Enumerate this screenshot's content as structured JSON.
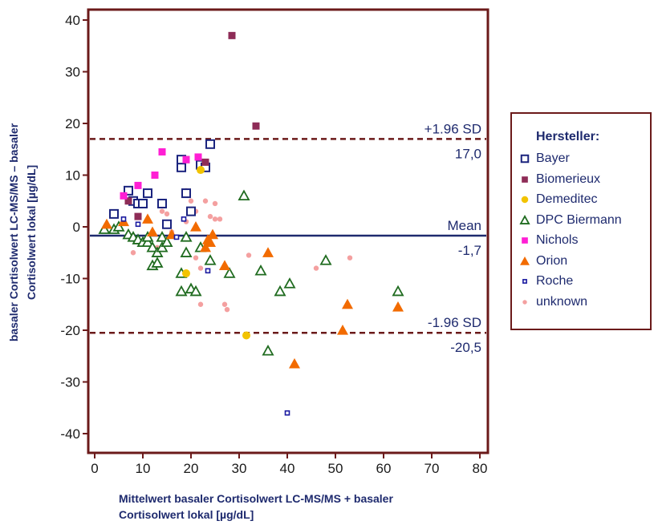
{
  "chart_data": {
    "type": "scatter",
    "xlim": [
      0,
      80
    ],
    "ylim": [
      -42,
      42
    ],
    "x_ticks": [
      "0",
      "10",
      "20",
      "30",
      "40",
      "50",
      "60",
      "70",
      "80"
    ],
    "y_ticks": [
      "40",
      "30",
      "20",
      "10",
      "0",
      "-10",
      "-20",
      "-30",
      "-40"
    ],
    "xlabel": [
      "Mittelwert basaler Cortisolwert LC-MS/MS + basaler",
      "Cortisolwert lokal [µg/dL]"
    ],
    "ylabel": [
      "basaler Cortisolwert LC-MS/MS – basaler",
      "Cortisolwert lokal [µg/dL]"
    ],
    "reference_lines": {
      "upper": {
        "label": "+1.96 SD",
        "value_text": "17,0",
        "y": 17.0
      },
      "mean": {
        "label": "Mean",
        "value_text": "-1,7",
        "y": -1.7
      },
      "lower": {
        "label": "-1.96 SD",
        "value_text": "-20,5",
        "y": -20.5
      }
    },
    "legend": {
      "title": "Hersteller:",
      "placement": "right"
    },
    "series": [
      {
        "name": "Bayer",
        "symbol": "square-open",
        "color": "#1a237e",
        "points": [
          [
            4,
            2.5
          ],
          [
            7,
            7
          ],
          [
            8,
            5
          ],
          [
            9,
            4.5
          ],
          [
            10,
            4.5
          ],
          [
            11,
            6.5
          ],
          [
            14,
            4.5
          ],
          [
            15,
            0.5
          ],
          [
            18,
            11.5
          ],
          [
            18,
            13
          ],
          [
            19,
            6.5
          ],
          [
            20,
            3
          ],
          [
            22,
            12
          ],
          [
            23,
            11.5
          ],
          [
            24,
            16
          ]
        ]
      },
      {
        "name": "Biomerieux",
        "symbol": "square",
        "color": "#8e2c57",
        "points": [
          [
            7,
            5
          ],
          [
            9,
            2
          ],
          [
            19,
            13
          ],
          [
            23,
            12.5
          ],
          [
            28.5,
            37
          ],
          [
            33.5,
            19.5
          ]
        ]
      },
      {
        "name": "Demeditec",
        "symbol": "circle",
        "color": "#f2c300",
        "points": [
          [
            19,
            -9
          ],
          [
            22,
            11
          ],
          [
            31.5,
            -21
          ]
        ]
      },
      {
        "name": "DPC Biermann",
        "symbol": "triangle-open",
        "color": "#1f6b1f",
        "points": [
          [
            2,
            -0.5
          ],
          [
            4,
            -0.5
          ],
          [
            5,
            0
          ],
          [
            7,
            -1.5
          ],
          [
            8,
            -2
          ],
          [
            9,
            -2.5
          ],
          [
            10,
            -3
          ],
          [
            11,
            -3
          ],
          [
            11,
            -2
          ],
          [
            12,
            -4
          ],
          [
            12,
            -7.5
          ],
          [
            13,
            -5
          ],
          [
            13,
            -7
          ],
          [
            14,
            -4
          ],
          [
            14,
            -2
          ],
          [
            15,
            -3
          ],
          [
            18,
            -9
          ],
          [
            18,
            -12.5
          ],
          [
            19,
            -5
          ],
          [
            19,
            -2
          ],
          [
            20,
            -12
          ],
          [
            21,
            -12.5
          ],
          [
            22,
            -4
          ],
          [
            24,
            -6.5
          ],
          [
            28,
            -9
          ],
          [
            31,
            6
          ],
          [
            34.5,
            -8.5
          ],
          [
            36,
            -24
          ],
          [
            38.5,
            -12.5
          ],
          [
            40.5,
            -11
          ],
          [
            48,
            -6.5
          ],
          [
            63,
            -12.5
          ]
        ]
      },
      {
        "name": "Nichols",
        "symbol": "square",
        "color": "#ff1fd4",
        "points": [
          [
            6,
            6
          ],
          [
            9,
            8
          ],
          [
            12.5,
            10
          ],
          [
            14,
            14.5
          ],
          [
            19,
            13
          ],
          [
            21.5,
            13.5
          ]
        ]
      },
      {
        "name": "Orion",
        "symbol": "triangle",
        "color": "#f26b00",
        "points": [
          [
            2.5,
            0.5
          ],
          [
            6,
            1
          ],
          [
            11,
            1.5
          ],
          [
            12,
            -1
          ],
          [
            16,
            -1.5
          ],
          [
            21,
            0
          ],
          [
            23,
            -4
          ],
          [
            23.5,
            -2.5
          ],
          [
            24,
            -3
          ],
          [
            24.5,
            -1.5
          ],
          [
            27,
            -7.5
          ],
          [
            36,
            -5
          ],
          [
            41.5,
            -26.5
          ],
          [
            51.5,
            -20
          ],
          [
            52.5,
            -15
          ],
          [
            63,
            -15.5
          ]
        ]
      },
      {
        "name": "Roche",
        "symbol": "square-small-open",
        "color": "#1a1aa0",
        "points": [
          [
            6,
            1.5
          ],
          [
            9,
            0.5
          ],
          [
            17,
            -2
          ],
          [
            18.5,
            1.5
          ],
          [
            23.5,
            -8.5
          ],
          [
            40,
            -36
          ]
        ]
      },
      {
        "name": "unknown",
        "symbol": "circle-small",
        "color": "#f4a0a0",
        "points": [
          [
            8,
            -5
          ],
          [
            13,
            -4
          ],
          [
            14,
            3
          ],
          [
            15,
            2.5
          ],
          [
            16,
            -1
          ],
          [
            19,
            7
          ],
          [
            19,
            1
          ],
          [
            20,
            5
          ],
          [
            21,
            3
          ],
          [
            21,
            -6
          ],
          [
            22,
            -8
          ],
          [
            22,
            -15
          ],
          [
            23,
            5
          ],
          [
            24,
            2
          ],
          [
            25,
            4.5
          ],
          [
            25,
            1.5
          ],
          [
            26,
            1.5
          ],
          [
            27,
            -15
          ],
          [
            27.5,
            -16
          ],
          [
            32,
            -5.5
          ],
          [
            46,
            -8
          ],
          [
            53,
            -6
          ]
        ]
      }
    ]
  }
}
